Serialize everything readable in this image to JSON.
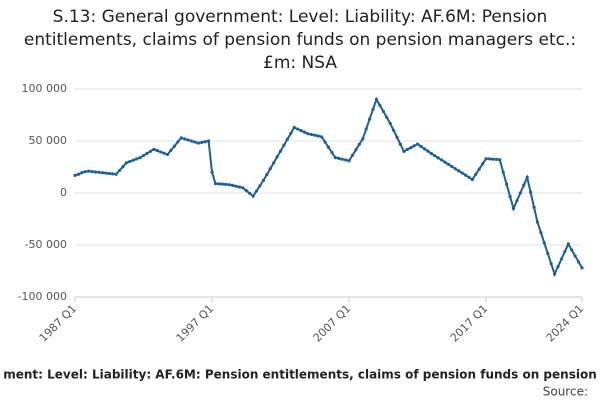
{
  "chart_data": {
    "type": "line",
    "title": "S.13: General government: Level: Liability: AF.6M: Pension entitlements, claims of pension funds on pension managers etc.: £m: NSA",
    "caption": "ment: Level: Liability: AF.6M: Pension entitlements, claims of pension funds on pension",
    "source": "Source:",
    "categories": [
      "1987 Q1",
      null,
      null,
      null,
      null,
      null,
      null,
      null,
      null,
      null,
      null,
      null,
      null,
      null,
      null,
      null,
      null,
      null,
      null,
      null,
      null,
      null,
      null,
      null,
      null,
      null,
      null,
      null,
      null,
      null,
      null,
      null,
      null,
      null,
      null,
      null,
      null,
      null,
      null,
      null,
      "1997 Q1",
      null,
      null,
      null,
      null,
      null,
      null,
      null,
      null,
      null,
      null,
      null,
      null,
      null,
      null,
      null,
      null,
      null,
      null,
      null,
      null,
      null,
      null,
      null,
      null,
      null,
      null,
      null,
      null,
      null,
      null,
      null,
      null,
      null,
      null,
      null,
      null,
      null,
      null,
      null,
      "2007 Q1",
      null,
      null,
      null,
      null,
      null,
      null,
      null,
      null,
      null,
      null,
      null,
      null,
      null,
      null,
      null,
      null,
      null,
      null,
      null,
      null,
      null,
      null,
      null,
      null,
      null,
      null,
      null,
      null,
      null,
      null,
      null,
      null,
      null,
      null,
      null,
      null,
      null,
      null,
      null,
      "2017 Q1",
      null,
      null,
      null,
      null,
      null,
      null,
      null,
      null,
      null,
      null,
      null,
      null,
      null,
      null,
      null,
      null,
      null,
      null,
      null,
      null,
      null,
      null,
      null,
      null,
      null,
      null,
      null,
      "2024 Q1"
    ],
    "series": [
      {
        "name": "S.13",
        "color": "#206095",
        "values": [
          17000,
          18000,
          19500,
          20500,
          21000,
          20600,
          20200,
          19900,
          19500,
          19100,
          18800,
          18400,
          18000,
          21700,
          25300,
          29000,
          30300,
          31500,
          32800,
          34000,
          36000,
          38000,
          40000,
          42000,
          40800,
          39500,
          38300,
          37000,
          41000,
          45000,
          49000,
          53000,
          52000,
          51000,
          50000,
          49000,
          48000,
          48700,
          49300,
          50000,
          20000,
          9000,
          8800,
          8500,
          8300,
          8000,
          7300,
          6500,
          5800,
          5000,
          2300,
          -300,
          -3000,
          2000,
          7000,
          12000,
          17700,
          23300,
          29000,
          34700,
          40300,
          46000,
          51700,
          57300,
          63000,
          61500,
          60000,
          58500,
          57000,
          56300,
          55500,
          54800,
          54000,
          49000,
          44000,
          39000,
          34000,
          33300,
          32500,
          31800,
          31000,
          36300,
          41500,
          46800,
          52000,
          61500,
          71000,
          80500,
          90000,
          84300,
          78500,
          72800,
          67000,
          60300,
          53500,
          46800,
          40000,
          41800,
          43500,
          45300,
          47000,
          44800,
          42500,
          40300,
          38000,
          35900,
          33800,
          31800,
          29700,
          27600,
          25500,
          23400,
          21300,
          19300,
          17200,
          15100,
          13000,
          18000,
          23000,
          28000,
          33000,
          32800,
          32500,
          32300,
          32000,
          20000,
          8300,
          -3300,
          -15000,
          -7500,
          0,
          7500,
          15000,
          700,
          -13700,
          -28000,
          -38000,
          -48000,
          -58000,
          -68000,
          -78000,
          -70800,
          -63500,
          -56300,
          -49000,
          -54800,
          -60500,
          -66300,
          -72000
        ]
      }
    ],
    "ylim": [
      -100000,
      100000
    ],
    "yticks": [
      {
        "value": -100000,
        "label": "-100 000"
      },
      {
        "value": -50000,
        "label": "-50 000"
      },
      0,
      {
        "value": 50000,
        "label": "50 000"
      },
      {
        "value": 100000,
        "label": "100 000"
      }
    ],
    "grid": true
  }
}
